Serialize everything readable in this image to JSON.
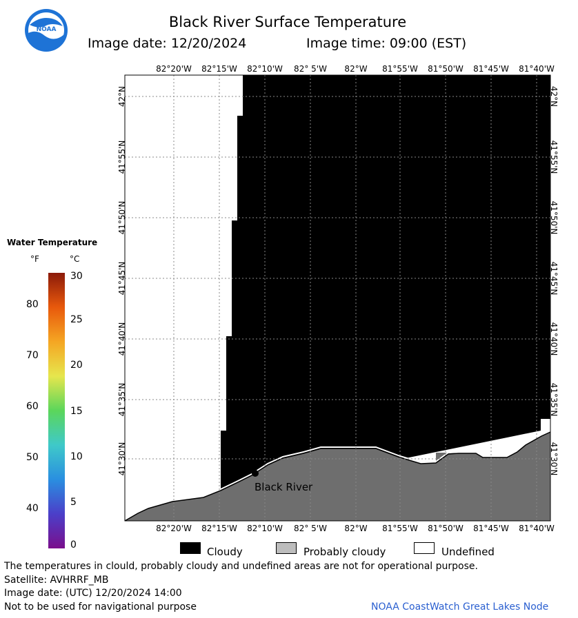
{
  "header": {
    "title": "Black River Surface Temperature",
    "image_date": "Image date: 12/20/2024",
    "image_time": "Image time: 09:00 (EST)"
  },
  "logo": {
    "text": "NOAA",
    "icon": "noaa-logo-icon"
  },
  "map": {
    "lon_labels": [
      "82°20'W",
      "82°15'W",
      "82°10'W",
      "82° 5'W",
      "82°W",
      "81°55'W",
      "81°50'W",
      "81°45'W",
      "81°40'W"
    ],
    "lat_labels": [
      "42°N",
      "41°55'N",
      "41°50'N",
      "41°45'N",
      "41°40'N",
      "41°35'N",
      "41°30'N"
    ],
    "station_label": "Black River",
    "colors": {
      "cloudy": "#000000",
      "land": "#6e6e6e",
      "undefined": "#ffffff",
      "grid": "#ffffff"
    }
  },
  "color_scale": {
    "title": "Water Temperature",
    "unit_f": "°F",
    "unit_c": "°C",
    "f_ticks": [
      "80",
      "70",
      "60",
      "50",
      "40"
    ],
    "c_ticks": [
      "30",
      "25",
      "20",
      "15",
      "10",
      "5",
      "0"
    ],
    "range_c": [
      0,
      30
    ],
    "gradient": [
      "#7a0f8c",
      "#4b3fc9",
      "#2a8fe0",
      "#3fc9c9",
      "#5bd65b",
      "#e6e64d",
      "#f5a623",
      "#e8590c",
      "#8b1a0a"
    ]
  },
  "legend": {
    "cloudy": "Cloudy",
    "probably_cloudy": "Probably cloudy",
    "undefined": "Undefined"
  },
  "footer": {
    "note": "The temperatures in clould, probably cloudy and undefined areas are not for operational purpose.",
    "satellite": "Satellite: AVHRRF_MB",
    "utc_date": "Image date: (UTC) 12/20/2024  14:00",
    "nav_warning": "Not to be used for navigational purpose",
    "credit": "NOAA CoastWatch Great Lakes Node"
  }
}
